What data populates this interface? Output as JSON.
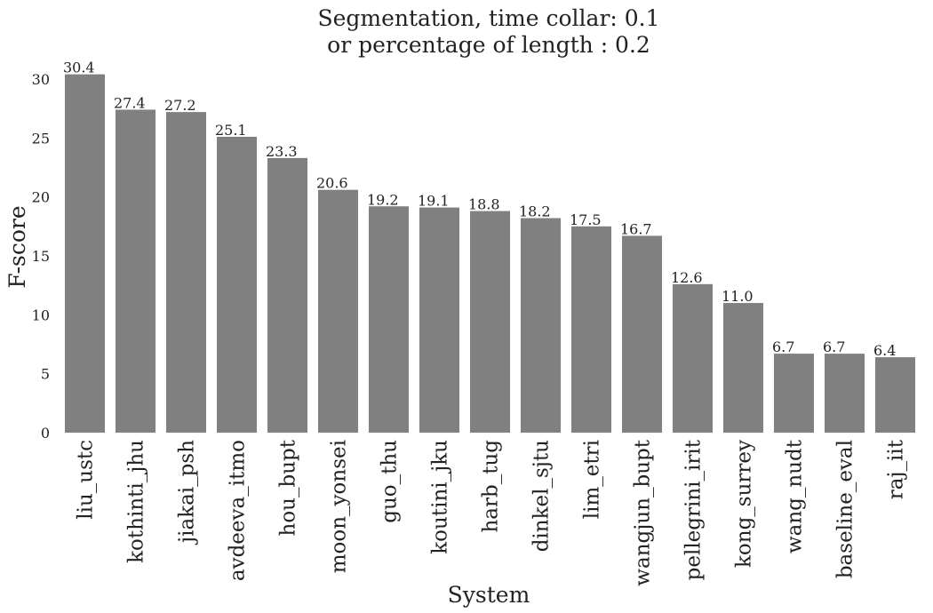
{
  "chart_data": {
    "type": "bar",
    "title_lines": [
      "Segmentation, time collar: 0.1",
      "or percentage of length : 0.2"
    ],
    "xlabel": "System",
    "ylabel": "F-score",
    "ylim": [
      0,
      30.6
    ],
    "yticks": [
      "0",
      "5",
      "10",
      "15",
      "20",
      "25",
      "30"
    ],
    "categories": [
      "liu_ustc",
      "kothinti_jhu",
      "jiakai_psh",
      "avdeeva_itmo",
      "hou_bupt",
      "moon_yonsei",
      "guo_thu",
      "koutini_jku",
      "harb_tug",
      "dinkel_sjtu",
      "lim_etri",
      "wangjun_bupt",
      "pellegrini_irit",
      "kong_surrey",
      "wang_nudt",
      "baseline_eval",
      "raj_iit"
    ],
    "values": [
      30.4,
      27.4,
      27.2,
      25.1,
      23.3,
      20.6,
      19.2,
      19.1,
      18.8,
      18.2,
      17.5,
      16.7,
      12.6,
      11.0,
      6.7,
      6.7,
      6.4
    ],
    "value_labels": [
      "30.4",
      "27.4",
      "27.2",
      "25.1",
      "23.3",
      "20.6",
      "19.2",
      "19.1",
      "18.8",
      "18.2",
      "17.5",
      "16.7",
      "12.6",
      "11.0",
      "6.7",
      "6.7",
      "6.4"
    ],
    "bar_color": "#808080",
    "grid": false,
    "legend": "none"
  }
}
